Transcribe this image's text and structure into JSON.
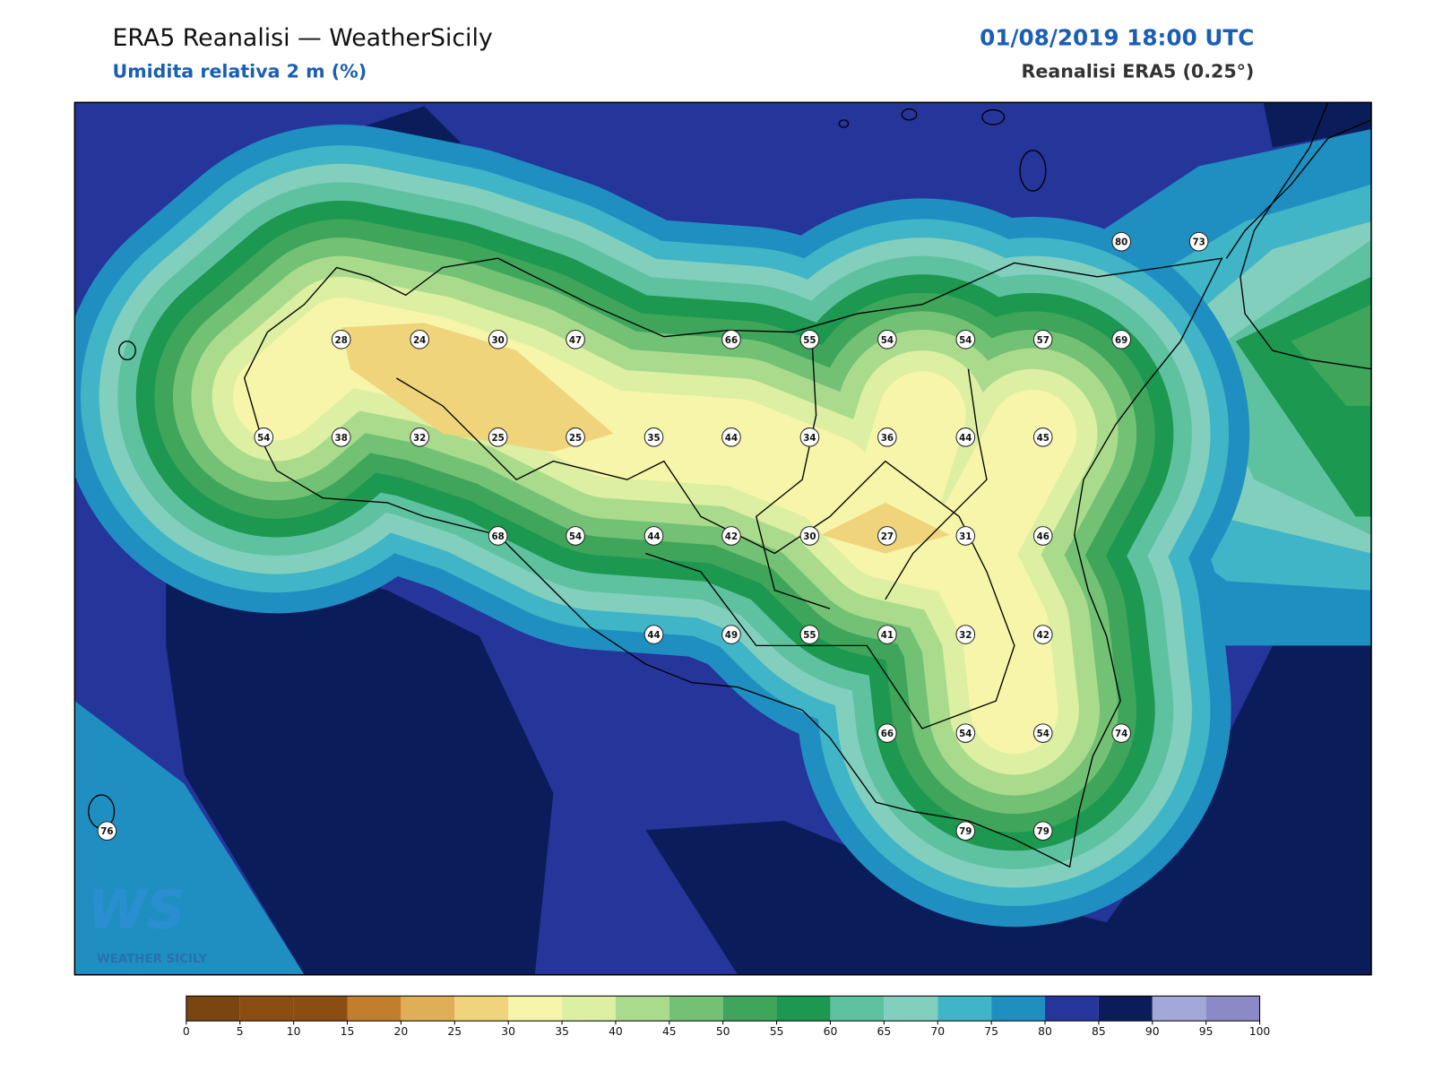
{
  "header": {
    "title": "ERA5 Reanalisi — WeatherSicily",
    "subtitle": "Umidita relativa 2 m (%)",
    "datetime": "01/08/2019 18:00 UTC",
    "source": "Reanalisi ERA5 (0.25°)"
  },
  "stations": {
    "values": [
      28,
      24,
      30,
      47,
      66,
      55,
      54,
      54,
      57,
      69,
      80,
      73,
      54,
      38,
      32,
      25,
      25,
      35,
      44,
      34,
      36,
      44,
      45,
      68,
      54,
      44,
      42,
      30,
      27,
      31,
      46,
      44,
      49,
      55,
      41,
      32,
      42,
      66,
      54,
      54,
      74,
      76,
      79,
      79
    ]
  },
  "colorbar": {
    "ticks": [
      0,
      5,
      10,
      15,
      20,
      25,
      30,
      35,
      40,
      45,
      50,
      55,
      60,
      65,
      70,
      75,
      80,
      85,
      90,
      95,
      100
    ],
    "colors": [
      "#7a4510",
      "#8c4d12",
      "#8c4d12",
      "#c17f2e",
      "#e0ae57",
      "#f0d47c",
      "#f6f5a9",
      "#dcefa2",
      "#aadb8c",
      "#72c174",
      "#3ea55a",
      "#1c9850",
      "#5ec2a0",
      "#82cfbe",
      "#40b5c8",
      "#1f8fc1",
      "#25359a",
      "#0a1d5a",
      "#a3a8d8",
      "#8b8ac6"
    ]
  },
  "logo": {
    "mark": "WS",
    "text": "WEATHER SICILY"
  }
}
